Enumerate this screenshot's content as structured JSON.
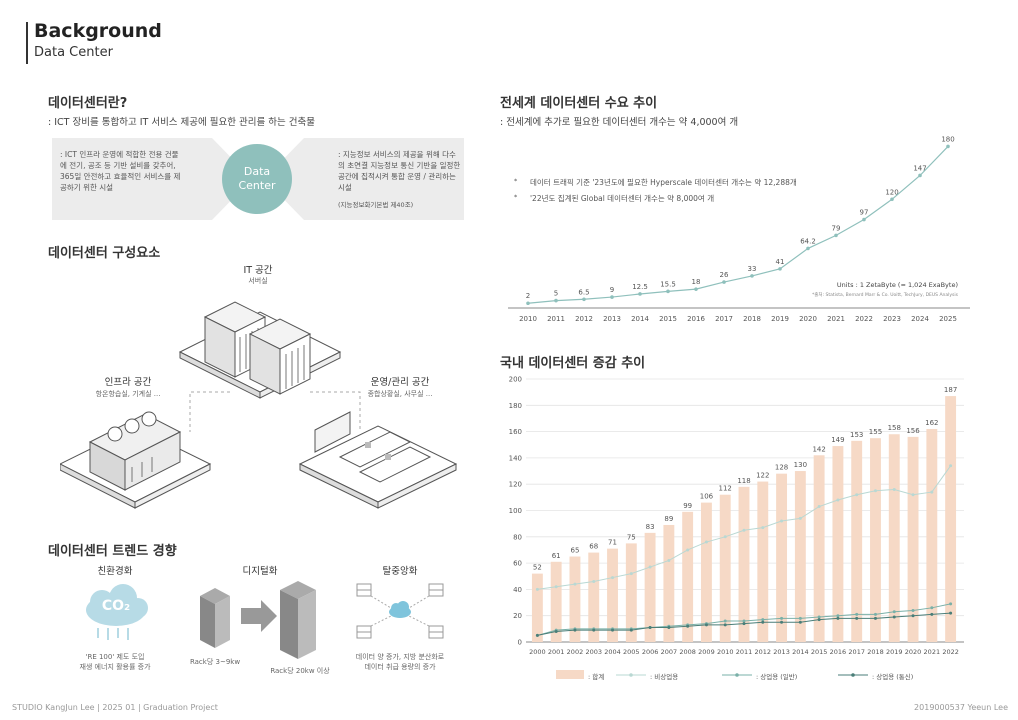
{
  "header": {
    "title": "Background",
    "subtitle": "Data Center"
  },
  "definition": {
    "title": "데이터센터란?",
    "desc": ": ICT 장비를 통합하고 IT 서비스 제공에 필요한 관리를 하는 건축물",
    "left_text": ": ICT 인프라 운영에 적합한 전용 건물에 전기, 공조 등 기반 설비를 갖추어, 365일 안전하고 효율적인 서비스를 제공하기 위한 시설",
    "center_line1": "Data",
    "center_line2": "Center",
    "right_text": ": 지능정보 서비스의 제공을 위해 다수의 초연결 지능정보 통신 기반을 일정한 공간에 집적시켜 통합 운영 / 관리하는 시설",
    "right_note": "(지능정보화기본법 제40조)"
  },
  "components": {
    "title": "데이터센터 구성요소",
    "it_label": "IT 공간",
    "it_sub": "서버실",
    "infra_label": "인프라 공간",
    "infra_sub": "항온항습실, 기계실 ...",
    "ops_label": "운영/관리 공간",
    "ops_sub": "종합상황실, 사무실 ..."
  },
  "trends": {
    "title": "데이터센터 트렌드 경향",
    "eco_label": "친환경화",
    "eco_icon_text": "CO₂",
    "eco_desc_1": "'RE 100' 제도 도입",
    "eco_desc_2": "재생 에너지 활용률 증가",
    "digital_label": "디지털화",
    "digital_left": "Rack당 3~9kw",
    "digital_right": "Rack당 20kw 이상",
    "decent_label": "탈중앙화",
    "decent_desc_1": "데이터 양 증가, 지방 분산화로",
    "decent_desc_2": "데이터 취급 용량의 증가"
  },
  "global": {
    "title": "전세계 데이터센터 수요 추이",
    "desc": ": 전세계에 추가로 필요한 데이터센터 개수는 약 4,000여 개",
    "bullet1": "데이터 트래픽 기준 '23년도에 필요한 Hyperscale 데이터센터 개수는 약 12,288개",
    "bullet2": "'22년도 집계된 Global 데이터센터 개수는 약 8,000여 개",
    "units": "Units : 1 ZetaByte (≈ 1,024 ExaByte)",
    "source": "*출처: Statista, Bernard Marr & Co. Uoitt, TechJury, DEUS Analysis"
  },
  "domestic": {
    "title": "국내 데이터센터 증감 추이",
    "legend_total": ": 합계",
    "legend_nonbiz": ": 비상업용",
    "legend_biz": ": 상업용 (일반)",
    "legend_telco": ": 상업용 (통신)"
  },
  "chart_data": [
    {
      "type": "line",
      "x": [
        "2010",
        "2011",
        "2012",
        "2013",
        "2014",
        "2015",
        "2016",
        "2017",
        "2018",
        "2019",
        "2020",
        "2021",
        "2022",
        "2023",
        "2024",
        "2025"
      ],
      "values": [
        2,
        5,
        6.5,
        9,
        12.5,
        15.5,
        18,
        26,
        33,
        41,
        64.2,
        79,
        97,
        120,
        147,
        180
      ],
      "point_labels": [
        "2",
        "5",
        "6.5",
        "9",
        "12.5",
        "15.5",
        "18",
        "26",
        "33",
        "41",
        "64.2",
        "79",
        "97",
        "120",
        "147",
        "180"
      ],
      "ylim": [
        0,
        185
      ],
      "color": "#8fc0bc"
    },
    {
      "type": "bar",
      "categories": [
        "2000",
        "2001",
        "2002",
        "2003",
        "2004",
        "2005",
        "2006",
        "2007",
        "2008",
        "2009",
        "2010",
        "2011",
        "2012",
        "2013",
        "2014",
        "2015",
        "2016",
        "2017",
        "2018",
        "2019",
        "2020",
        "2021",
        "2022"
      ],
      "yticks": [
        "0",
        "20",
        "40",
        "60",
        "80",
        "100",
        "120",
        "140",
        "160",
        "180",
        "200"
      ],
      "ylim": [
        0,
        200
      ],
      "series": [
        {
          "name": "합계",
          "kind": "bar",
          "color": "#f6d9c6",
          "values": [
            52,
            61,
            65,
            68,
            71,
            75,
            83,
            89,
            99,
            106,
            112,
            118,
            122,
            128,
            130,
            142,
            149,
            153,
            155,
            158,
            156,
            162,
            187
          ]
        },
        {
          "name": "비상업용",
          "kind": "line",
          "color": "#b9d8d3",
          "values": [
            40,
            42,
            44,
            46,
            49,
            52,
            57,
            62,
            70,
            76,
            80,
            85,
            87,
            92,
            94,
            103,
            108,
            112,
            115,
            116,
            112,
            114,
            134
          ]
        },
        {
          "name": "상업용 (일반)",
          "kind": "line",
          "color": "#7ab0a8",
          "values": [
            5,
            9,
            10,
            10,
            10,
            10,
            11,
            12,
            13,
            14,
            16,
            16,
            17,
            18,
            18,
            19,
            20,
            21,
            21,
            23,
            24,
            26,
            29
          ]
        },
        {
          "name": "상업용 (통신)",
          "kind": "line",
          "color": "#4a7e78",
          "values": [
            5,
            8,
            9,
            9,
            9,
            9,
            11,
            11,
            12,
            13,
            13,
            14,
            15,
            15,
            15,
            17,
            18,
            18,
            18,
            19,
            20,
            21,
            22
          ]
        }
      ]
    }
  ],
  "footer": {
    "left": "STUDIO KangJun Lee | 2025 01 | Graduation Project",
    "right": "2019000537 Yeeun Lee"
  }
}
